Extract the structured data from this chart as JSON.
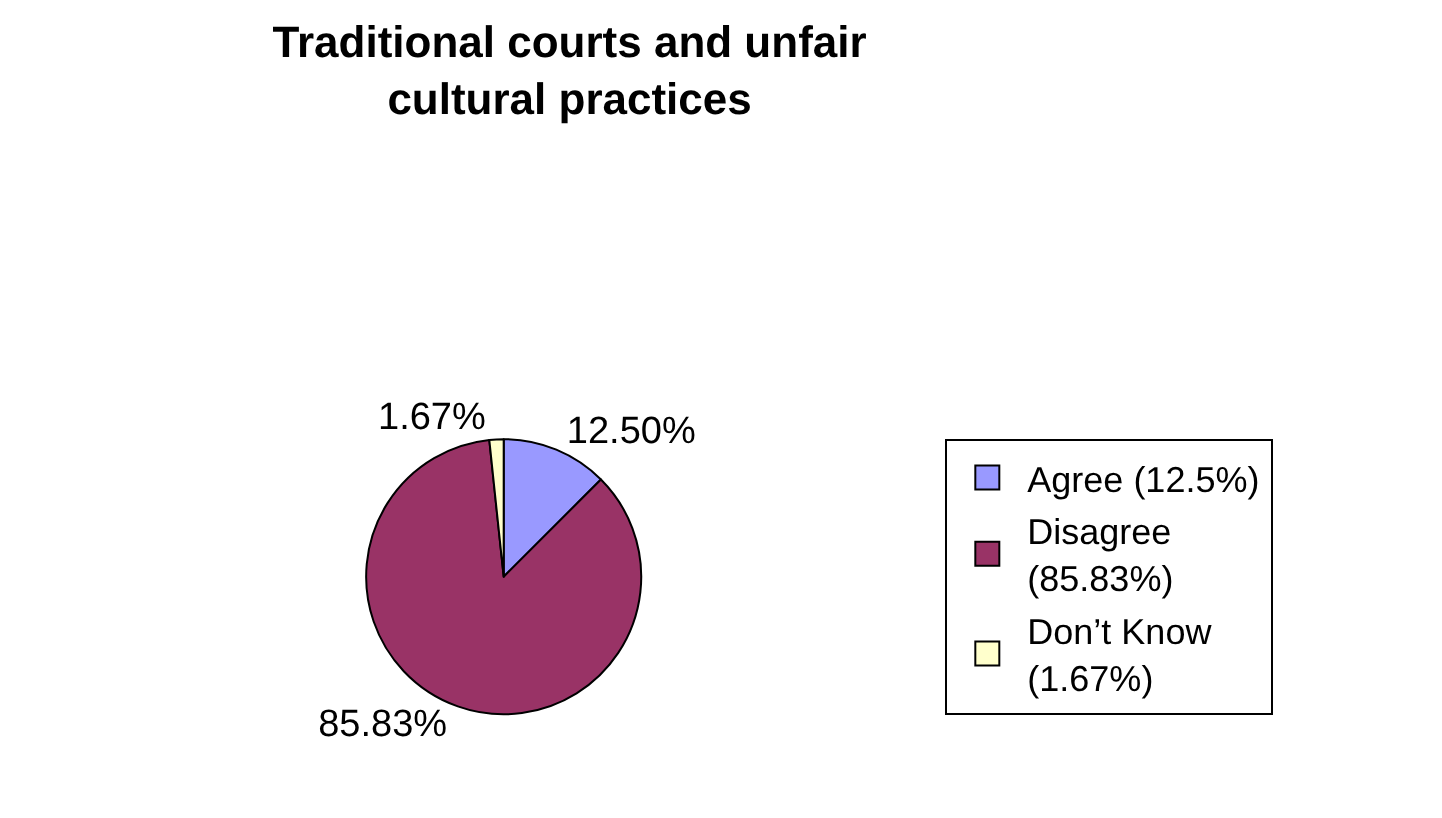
{
  "chart_data": {
    "type": "pie",
    "title": "Traditional courts and unfair cultural practices",
    "categories": [
      "Agree (12.5%)",
      "Disagree (85.83%)",
      "Don’t Know (1.67%)"
    ],
    "values": [
      12.5,
      85.83,
      1.67
    ],
    "colors": [
      "#9999ff",
      "#993366",
      "#ffffcc"
    ],
    "value_labels": [
      "12.50%",
      "85.83%",
      "1.67%"
    ],
    "legend": "right"
  }
}
